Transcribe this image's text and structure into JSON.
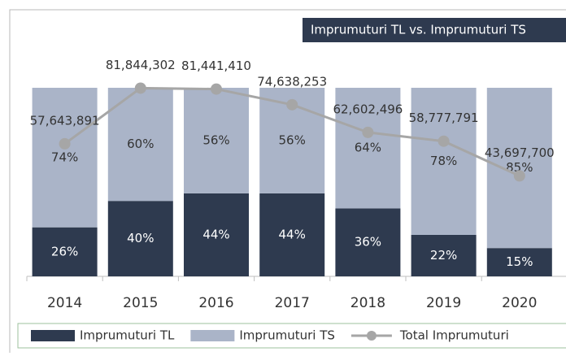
{
  "chart_data": {
    "type": "bar",
    "title": "Imprumuturi TL vs. Imprumuturi TS",
    "categories": [
      "2014",
      "2015",
      "2016",
      "2017",
      "2018",
      "2019",
      "2020"
    ],
    "stacked": true,
    "ylim": [
      0,
      100
    ],
    "y2lim": [
      0,
      82000000
    ],
    "series": [
      {
        "name": "Imprumuturi TL",
        "type": "bar",
        "color": "#2e3a4f",
        "values": [
          26,
          40,
          44,
          44,
          36,
          22,
          15
        ],
        "value_labels": [
          "26%",
          "40%",
          "44%",
          "44%",
          "36%",
          "22%",
          "15%"
        ]
      },
      {
        "name": "Imprumuturi TS",
        "type": "bar",
        "color": "#aab4c8",
        "values": [
          74,
          60,
          56,
          56,
          64,
          78,
          85
        ],
        "value_labels": [
          "74%",
          "60%",
          "56%",
          "56%",
          "64%",
          "78%",
          "85%"
        ]
      },
      {
        "name": "Total Imprumuturi",
        "type": "line",
        "axis": "y2",
        "color": "#a6a6a6",
        "values": [
          57643891,
          81844302,
          81441410,
          74638253,
          62602496,
          58777791,
          43697700
        ],
        "value_labels": [
          "57,643,891",
          "81,844,302",
          "81,441,410",
          "74,638,253",
          "62,602,496",
          "58,777,791",
          "43,697,700"
        ]
      }
    ],
    "legend": "bottom"
  }
}
